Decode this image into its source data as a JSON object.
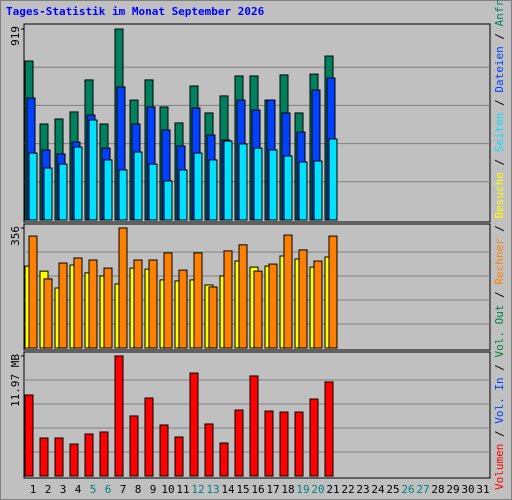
{
  "title": "Tages-Statistik im Monat September 2026",
  "legend_separator": " / ",
  "chart_data": [
    {
      "type": "bar",
      "ylim": [
        0,
        919
      ],
      "yticks": [
        919
      ],
      "grid": true,
      "series": [
        {
          "name": "Anfragen",
          "color": "#00805c",
          "values": [
            765,
            462,
            486,
            520,
            674,
            462,
            919,
            577,
            674,
            544,
            467,
            645,
            515,
            597,
            693,
            693,
            577,
            698,
            515,
            702,
            789,
            null,
            null,
            null,
            null,
            null,
            null,
            null,
            null,
            null,
            null
          ]
        },
        {
          "name": "Dateien",
          "color": "#0040ff",
          "values": [
            587,
            337,
            318,
            375,
            505,
            346,
            640,
            462,
            544,
            433,
            356,
            539,
            409,
            385,
            577,
            529,
            577,
            515,
            423,
            625,
            683,
            null,
            null,
            null,
            null,
            null,
            null,
            null,
            null,
            null,
            null
          ]
        },
        {
          "name": "Seiten",
          "color": "#00e0ff",
          "values": [
            322,
            250,
            269,
            351,
            481,
            289,
            241,
            327,
            269,
            188,
            241,
            322,
            289,
            380,
            366,
            346,
            337,
            308,
            279,
            284,
            390,
            null,
            null,
            null,
            null,
            null,
            null,
            null,
            null,
            null,
            null
          ]
        }
      ]
    },
    {
      "type": "bar",
      "ylim": [
        0,
        356
      ],
      "yticks": [
        356
      ],
      "grid": true,
      "series": [
        {
          "name": "Besuche",
          "color": "#ffff00",
          "values": [
            243,
            228,
            178,
            246,
            223,
            214,
            190,
            237,
            234,
            202,
            199,
            202,
            187,
            214,
            258,
            240,
            243,
            273,
            264,
            240,
            270,
            null,
            null,
            null,
            null,
            null,
            null,
            null,
            null,
            null,
            null
          ]
        },
        {
          "name": "Rechner",
          "color": "#ff8000",
          "values": [
            332,
            205,
            252,
            267,
            261,
            237,
            356,
            261,
            261,
            282,
            231,
            282,
            181,
            288,
            306,
            228,
            249,
            335,
            291,
            258,
            332,
            null,
            null,
            null,
            null,
            null,
            null,
            null,
            null,
            null,
            null
          ]
        }
      ]
    },
    {
      "type": "bar",
      "ylim": [
        0,
        11.97
      ],
      "yticks": [
        {
          "value": 11.97,
          "label": "11.97 MB"
        }
      ],
      "grid": true,
      "categories": [
        "1",
        "2",
        "3",
        "4",
        "5",
        "6",
        "7",
        "8",
        "9",
        "10",
        "11",
        "12",
        "13",
        "14",
        "15",
        "16",
        "17",
        "18",
        "19",
        "20",
        "21",
        "22",
        "23",
        "24",
        "25",
        "26",
        "27",
        "28",
        "29",
        "30",
        "31"
      ],
      "category_colors": [
        "#000000",
        "#000000",
        "#000000",
        "#000000",
        "#008080",
        "#008080",
        "#000000",
        "#000000",
        "#000000",
        "#000000",
        "#000000",
        "#008080",
        "#008080",
        "#000000",
        "#000000",
        "#000000",
        "#000000",
        "#000000",
        "#008080",
        "#008080",
        "#000000",
        "#000000",
        "#000000",
        "#000000",
        "#000000",
        "#008080",
        "#008080",
        "#000000",
        "#000000",
        "#000000",
        "#000000"
      ],
      "series": [
        {
          "name": "Volumen",
          "color": "#ff0000",
          "values": [
            8.08,
            3.79,
            3.79,
            3.19,
            4.19,
            4.39,
            11.97,
            5.99,
            7.78,
            5.09,
            3.89,
            10.27,
            5.19,
            3.29,
            6.58,
            9.98,
            6.48,
            6.38,
            6.38,
            7.68,
            9.38,
            null,
            null,
            null,
            null,
            null,
            null,
            null,
            null,
            null,
            null
          ]
        },
        {
          "name": "Vol. In",
          "color": "#0040ff",
          "values": [
            0,
            0,
            0,
            0,
            0,
            0,
            0,
            0,
            0,
            0,
            0,
            0,
            0,
            0,
            0,
            0,
            0,
            0,
            0,
            0,
            0,
            null,
            null,
            null,
            null,
            null,
            null,
            null,
            null,
            null,
            null
          ]
        },
        {
          "name": "Vol. Out",
          "color": "#008040",
          "values": [
            0,
            0,
            0,
            0,
            0,
            0,
            0,
            0,
            0,
            0,
            0,
            0,
            0,
            0,
            0,
            0,
            0,
            0,
            0,
            0,
            0,
            null,
            null,
            null,
            null,
            null,
            null,
            null,
            null,
            null,
            null
          ]
        }
      ]
    }
  ]
}
